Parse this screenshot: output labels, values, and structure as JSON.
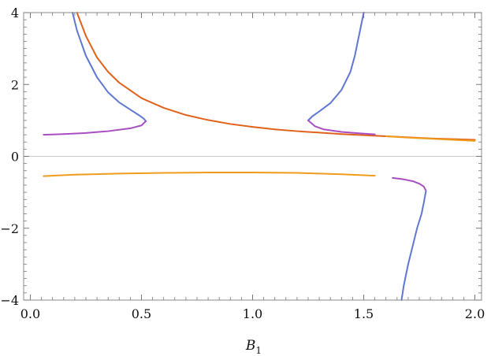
{
  "chart_data": {
    "type": "line",
    "xlabel": "B",
    "xlabel_subscript": "1",
    "ylabel": "",
    "title": "",
    "xlim": [
      -0.03,
      2.03
    ],
    "ylim": [
      -4,
      4
    ],
    "grid": false,
    "x_ticks": [
      {
        "value": 0.0,
        "label": "0.0"
      },
      {
        "value": 0.5,
        "label": "0.5"
      },
      {
        "value": 1.0,
        "label": "1.0"
      },
      {
        "value": 1.5,
        "label": "1.5"
      },
      {
        "value": 2.0,
        "label": "2.0"
      }
    ],
    "y_ticks": [
      {
        "value": -4,
        "label": "−4"
      },
      {
        "value": -2,
        "label": "−2"
      },
      {
        "value": 0,
        "label": "0"
      },
      {
        "value": 2,
        "label": "2"
      },
      {
        "value": 4,
        "label": "4"
      }
    ],
    "colors": {
      "blue": "#5e77d1",
      "orange_red": "#e0621a",
      "orange": "#ef9b1c",
      "magenta": "#a94ec0",
      "zero_line": "#cccccc",
      "frame": "#888888"
    },
    "series": [
      {
        "color": "#e0621a",
        "x": [
          0.21,
          0.25,
          0.3,
          0.35,
          0.4,
          0.5,
          0.6,
          0.7,
          0.8,
          0.9,
          1.0,
          1.1,
          1.2,
          1.3,
          1.4,
          1.5,
          1.6,
          1.7,
          1.8,
          1.9,
          2.0
        ],
        "y": [
          4.0,
          3.35,
          2.75,
          2.35,
          2.05,
          1.62,
          1.35,
          1.15,
          1.01,
          0.9,
          0.82,
          0.75,
          0.7,
          0.66,
          0.62,
          0.59,
          0.56,
          0.53,
          0.5,
          0.48,
          0.46
        ]
      },
      {
        "color": "#ef9b1c",
        "x": [
          0.06,
          0.2,
          0.4,
          0.6,
          0.8,
          1.0,
          1.2,
          1.4,
          1.55
        ],
        "y": [
          -0.55,
          -0.51,
          -0.48,
          -0.46,
          -0.45,
          -0.45,
          -0.46,
          -0.5,
          -0.54
        ]
      },
      {
        "color": "#ef9b1c",
        "x": [
          1.6,
          1.7,
          1.8,
          1.9,
          2.0
        ],
        "y": [
          0.56,
          0.52,
          0.49,
          0.46,
          0.43
        ]
      },
      {
        "color": "#5e77d1",
        "x": [
          0.19,
          0.21,
          0.25,
          0.3,
          0.35,
          0.4,
          0.45,
          0.49,
          0.51,
          0.52
        ],
        "y": [
          4.0,
          3.5,
          2.8,
          2.2,
          1.78,
          1.5,
          1.3,
          1.14,
          1.05,
          0.98
        ]
      },
      {
        "color": "#a94ec0",
        "x": [
          0.06,
          0.15,
          0.25,
          0.35,
          0.45,
          0.5,
          0.52
        ],
        "y": [
          0.6,
          0.62,
          0.65,
          0.7,
          0.78,
          0.86,
          0.98
        ]
      },
      {
        "color": "#5e77d1",
        "x": [
          1.25,
          1.27,
          1.3,
          1.35,
          1.4,
          1.44,
          1.46,
          1.48,
          1.5
        ],
        "y": [
          1.0,
          1.12,
          1.25,
          1.48,
          1.85,
          2.35,
          2.8,
          3.4,
          4.0
        ]
      },
      {
        "color": "#a94ec0",
        "x": [
          1.25,
          1.28,
          1.32,
          1.4,
          1.48,
          1.55
        ],
        "y": [
          1.0,
          0.84,
          0.75,
          0.68,
          0.64,
          0.61
        ]
      },
      {
        "color": "#a94ec0",
        "x": [
          1.63,
          1.68,
          1.72,
          1.75,
          1.77,
          1.78
        ],
        "y": [
          -0.6,
          -0.64,
          -0.69,
          -0.76,
          -0.84,
          -0.96
        ]
      },
      {
        "color": "#5e77d1",
        "x": [
          1.78,
          1.77,
          1.76,
          1.74,
          1.72,
          1.7,
          1.68,
          1.67
        ],
        "y": [
          -0.96,
          -1.3,
          -1.6,
          -2.0,
          -2.5,
          -3.0,
          -3.6,
          -4.0
        ]
      }
    ]
  }
}
